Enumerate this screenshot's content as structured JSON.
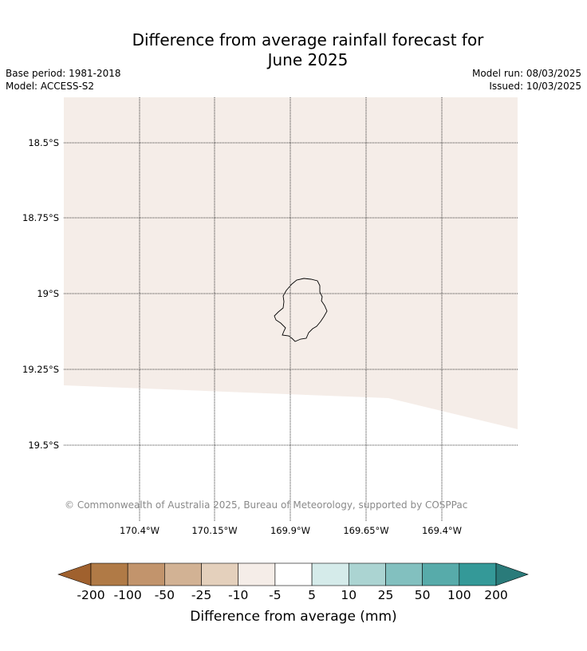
{
  "title": {
    "line1": "Difference from average rainfall forecast for",
    "line2": "June 2025"
  },
  "meta": {
    "base_period": "Base period: 1981-2018",
    "model": "Model: ACCESS-S2",
    "model_run": "Model run: 08/03/2025",
    "issued": "Issued: 10/03/2025"
  },
  "map": {
    "lat_labels": [
      "18.5°S",
      "18.75°S",
      "19°S",
      "19.25°S",
      "19.5°S"
    ],
    "lon_labels": [
      "170.4°W",
      "170.15°W",
      "169.9°W",
      "169.65°W",
      "169.4°W"
    ],
    "fill_color": "#f5ede8",
    "grid": true,
    "copyright": "© Commonwealth of Australia 2025, Bureau of Meteorology, supported by COSPPac"
  },
  "colorbar": {
    "colors": [
      "#a0612e",
      "#b07a46",
      "#c2946c",
      "#d2b294",
      "#e4d0bc",
      "#f5ede8",
      "#ffffff",
      "#d5ebea",
      "#abd4d2",
      "#82c0bf",
      "#57abaa",
      "#349998",
      "#2a7b7a"
    ],
    "tick_labels": [
      "-200",
      "-100",
      "-50",
      "-25",
      "-10",
      "-5",
      "5",
      "10",
      "25",
      "50",
      "100",
      "200"
    ],
    "label": "Difference from average (mm)"
  }
}
